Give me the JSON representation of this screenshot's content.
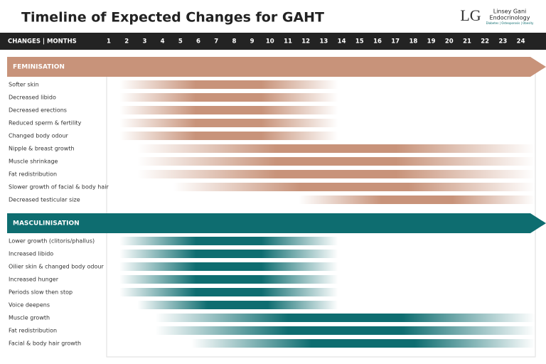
{
  "header": {
    "title": "Timeline of Expected Changes for GAHT",
    "logo": {
      "monogram": "LG",
      "name_line1": "Linsey Gani",
      "name_line2": "Endocrinology",
      "tagline": "Diabetes | Osteoporosis | Obesity"
    }
  },
  "axis": {
    "label": "CHANGES | MONTHS",
    "months": [
      1,
      2,
      3,
      4,
      5,
      6,
      7,
      8,
      9,
      10,
      11,
      12,
      13,
      14,
      15,
      16,
      17,
      18,
      19,
      20,
      21,
      22,
      23,
      24
    ]
  },
  "sections": [
    {
      "title": "FEMINISATION",
      "color": "#c8937a",
      "items": [
        {
          "label": "Softer skin",
          "start": 2,
          "end": 13
        },
        {
          "label": "Decreased libido",
          "start": 2,
          "end": 13
        },
        {
          "label": "Decreased erections",
          "start": 2,
          "end": 13
        },
        {
          "label": "Reduced sperm & fertility",
          "start": 2,
          "end": 13
        },
        {
          "label": "Changed body odour",
          "start": 2,
          "end": 13
        },
        {
          "label": "Nipple & breast growth",
          "start": 3,
          "end": 24
        },
        {
          "label": "Muscle shrinkage",
          "start": 3,
          "end": 24
        },
        {
          "label": "Fat redistribution",
          "start": 3,
          "end": 24
        },
        {
          "label": "Slower growth of facial & body hair",
          "start": 5,
          "end": 24
        },
        {
          "label": "Decreased testicular size",
          "start": 12,
          "end": 24
        }
      ]
    },
    {
      "title": "MASCULINISATION",
      "color": "#0e6d70",
      "items": [
        {
          "label": "Lower growth (clitoris/phallus)",
          "start": 2,
          "end": 13
        },
        {
          "label": "Increased libido",
          "start": 2,
          "end": 13
        },
        {
          "label": "Oilier skin & changed body odour",
          "start": 2,
          "end": 13
        },
        {
          "label": "Increased hunger",
          "start": 2,
          "end": 13
        },
        {
          "label": "Periods slow then stop",
          "start": 2,
          "end": 13
        },
        {
          "label": "Voice deepens",
          "start": 3,
          "end": 13
        },
        {
          "label": "Muscle growth",
          "start": 4,
          "end": 24
        },
        {
          "label": "Fat redistribution",
          "start": 4,
          "end": 24
        },
        {
          "label": "Facial & body hair growth",
          "start": 6,
          "end": 24
        }
      ]
    }
  ]
}
